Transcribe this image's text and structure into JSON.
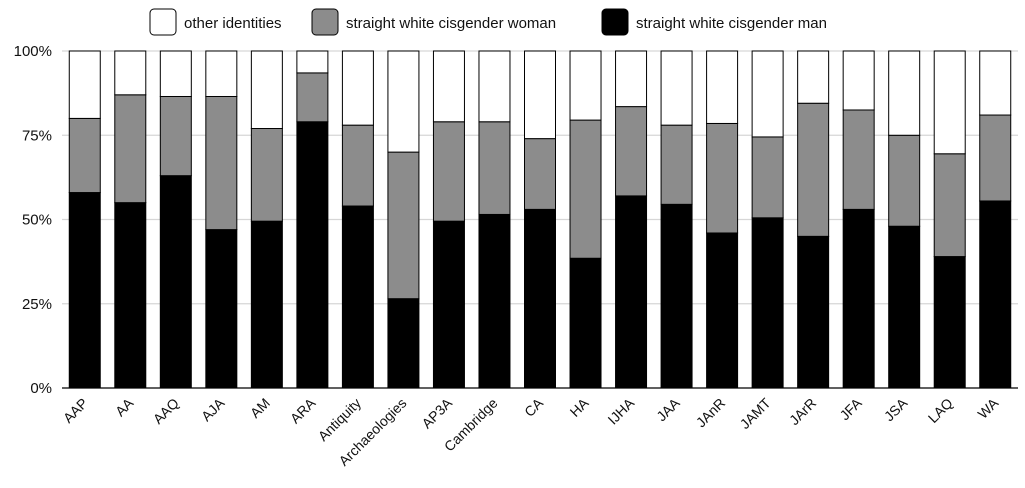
{
  "chart_data": {
    "type": "bar",
    "stacked": true,
    "title": "",
    "xlabel": "",
    "ylabel": "",
    "ylim": [
      0,
      100
    ],
    "yticks": [
      "0%",
      "25%",
      "50%",
      "75%",
      "100%"
    ],
    "ytick_values": [
      0,
      25,
      50,
      75,
      100
    ],
    "grid": "horizontal",
    "legend_position": "top",
    "categories": [
      "AAP",
      "AA",
      "AAQ",
      "AJA",
      "AM",
      "ARA",
      "Antiquity",
      "Archaeologies",
      "AP3A",
      "Cambridge",
      "CA",
      "HA",
      "IJHA",
      "JAA",
      "JAnR",
      "JAMT",
      "JArR",
      "JFA",
      "JSA",
      "LAQ",
      "WA"
    ],
    "series": [
      {
        "name": "straight white cisgender man",
        "color": "#000000",
        "values": [
          58,
          55,
          63,
          47,
          49.5,
          79,
          54,
          26.5,
          49.5,
          51.5,
          53,
          38.5,
          57,
          54.5,
          46,
          50.5,
          45,
          53,
          48,
          39,
          55.5
        ]
      },
      {
        "name": "straight white cisgender woman",
        "color": "#8c8c8c",
        "values": [
          22,
          32,
          23.5,
          39.5,
          27.5,
          14.5,
          24,
          43.5,
          29.5,
          27.5,
          21,
          41,
          26.5,
          23.5,
          32.5,
          24,
          39.5,
          29.5,
          27,
          30.5,
          25.5
        ]
      },
      {
        "name": "other identities",
        "color": "#ffffff",
        "values": [
          20,
          13,
          13.5,
          13.5,
          23,
          6.5,
          22,
          30,
          21,
          21,
          26,
          20.5,
          16.5,
          22,
          21.5,
          25.5,
          15.5,
          17.5,
          25,
          30.5,
          19
        ]
      }
    ],
    "legend_order": [
      "other identities",
      "straight white cisgender woman",
      "straight white cisgender man"
    ]
  }
}
